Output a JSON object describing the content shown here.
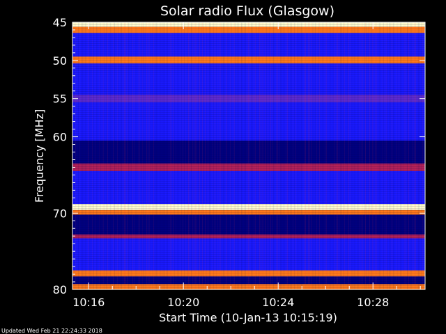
{
  "chart_data": {
    "type": "heatmap",
    "title": "Solar radio Flux (Glasgow)",
    "xlabel": "Start Time (10-Jan-13 10:15:19)",
    "ylabel": "Frequency [MHz]",
    "x_ticks": [
      "10:16",
      "10:20",
      "10:24",
      "10:28"
    ],
    "x_tick_minutes": [
      16,
      20,
      24,
      28
    ],
    "xlim_minutes": [
      15.3167,
      30.2
    ],
    "y_ticks": [
      45,
      50,
      55,
      60,
      70,
      80
    ],
    "ylim": [
      45,
      80
    ],
    "frequency_bands": [
      {
        "low": 45.0,
        "high": 45.6,
        "level": 1.0
      },
      {
        "low": 45.6,
        "high": 46.4,
        "level": 0.8
      },
      {
        "low": 46.4,
        "high": 49.5,
        "level": 0.2
      },
      {
        "low": 49.5,
        "high": 50.4,
        "level": 0.82
      },
      {
        "low": 50.4,
        "high": 54.5,
        "level": 0.2
      },
      {
        "low": 54.5,
        "high": 55.5,
        "level": 0.35
      },
      {
        "low": 55.5,
        "high": 60.5,
        "level": 0.15
      },
      {
        "low": 60.5,
        "high": 63.5,
        "level": 0.05
      },
      {
        "low": 63.5,
        "high": 64.5,
        "level": 0.45
      },
      {
        "low": 64.5,
        "high": 68.8,
        "level": 0.12
      },
      {
        "low": 68.8,
        "high": 69.6,
        "level": 1.0
      },
      {
        "low": 69.6,
        "high": 70.2,
        "level": 0.85
      },
      {
        "low": 70.2,
        "high": 72.8,
        "level": 0.08
      },
      {
        "low": 72.8,
        "high": 73.3,
        "level": 0.5
      },
      {
        "low": 73.3,
        "high": 77.5,
        "level": 0.1
      },
      {
        "low": 77.5,
        "high": 78.3,
        "level": 0.75
      },
      {
        "low": 78.3,
        "high": 79.3,
        "level": 0.08
      },
      {
        "low": 79.3,
        "high": 80.0,
        "level": 0.85
      }
    ],
    "colormap": [
      "#000080",
      "#1a1aff",
      "#5a2ad0",
      "#b0205a",
      "#e02010",
      "#ff7a1a",
      "#ffffd0"
    ]
  },
  "footer": {
    "updated": "Updated Wed Feb 21 22:24:33 2018"
  }
}
